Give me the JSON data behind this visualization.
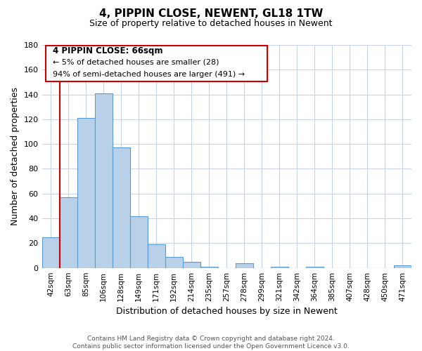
{
  "title": "4, PIPPIN CLOSE, NEWENT, GL18 1TW",
  "subtitle": "Size of property relative to detached houses in Newent",
  "xlabel": "Distribution of detached houses by size in Newent",
  "ylabel": "Number of detached properties",
  "bar_labels": [
    "42sqm",
    "63sqm",
    "85sqm",
    "106sqm",
    "128sqm",
    "149sqm",
    "171sqm",
    "192sqm",
    "214sqm",
    "235sqm",
    "257sqm",
    "278sqm",
    "299sqm",
    "321sqm",
    "342sqm",
    "364sqm",
    "385sqm",
    "407sqm",
    "428sqm",
    "450sqm",
    "471sqm"
  ],
  "bar_values": [
    25,
    57,
    121,
    141,
    97,
    42,
    19,
    9,
    5,
    1,
    0,
    4,
    0,
    1,
    0,
    1,
    0,
    0,
    0,
    0,
    2
  ],
  "bar_color": "#b8d0e8",
  "bar_edge_color": "#5b9bd5",
  "ylim": [
    0,
    180
  ],
  "yticks": [
    0,
    20,
    40,
    60,
    80,
    100,
    120,
    140,
    160,
    180
  ],
  "vline_color": "#cc0000",
  "vline_x": 0.5,
  "annotation_title": "4 PIPPIN CLOSE: 66sqm",
  "annotation_line1": "← 5% of detached houses are smaller (28)",
  "annotation_line2": "94% of semi-detached houses are larger (491) →",
  "annotation_box_edge": "#cc0000",
  "annotation_box_face": "#ffffff",
  "footer_line1": "Contains HM Land Registry data © Crown copyright and database right 2024.",
  "footer_line2": "Contains public sector information licensed under the Open Government Licence v3.0.",
  "background_color": "#ffffff",
  "grid_color": "#c8d4e4"
}
